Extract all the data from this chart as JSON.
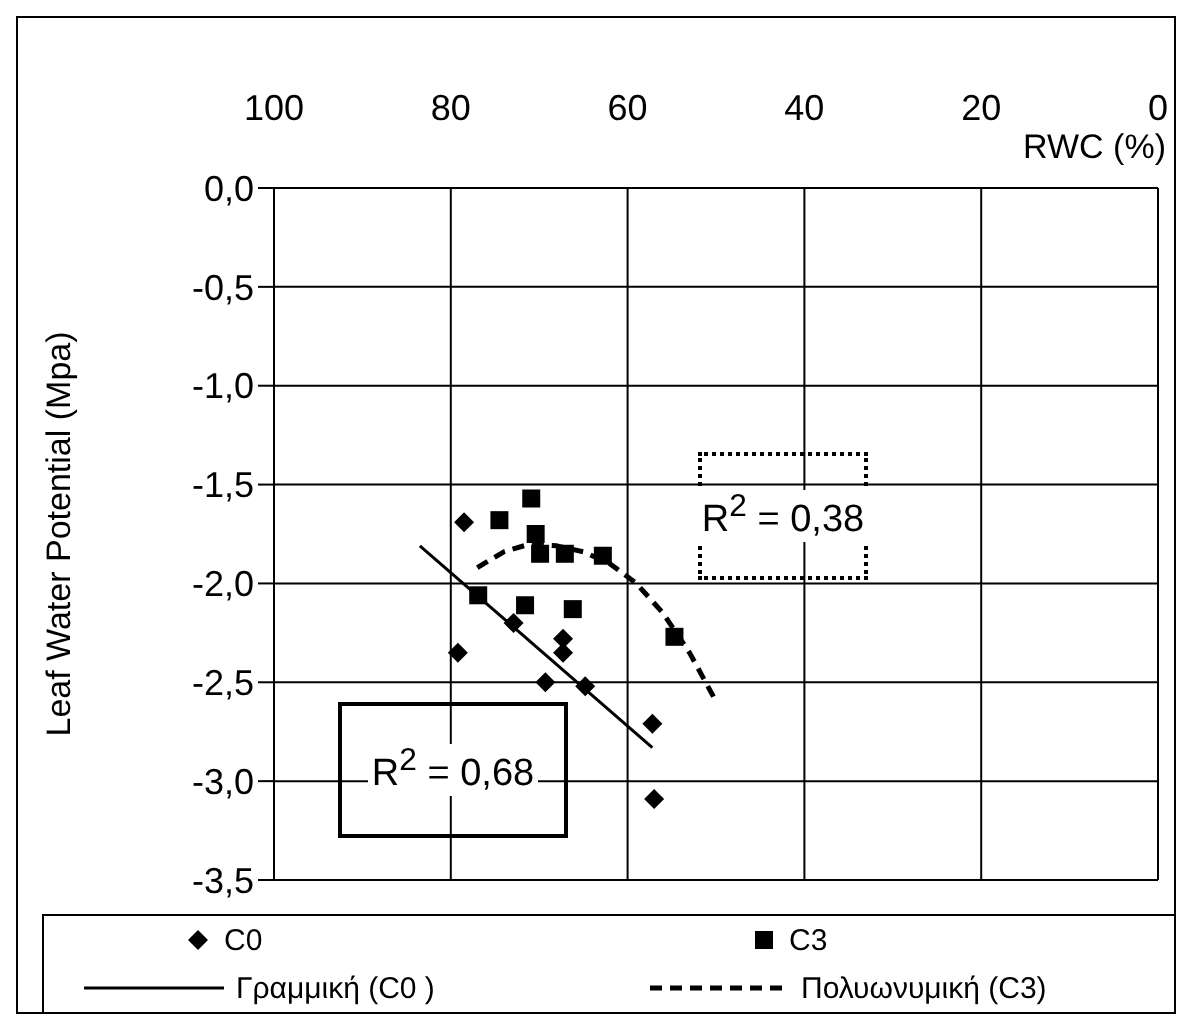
{
  "chart_data": {
    "type": "scatter",
    "xlabel": "RWC (%)",
    "ylabel": "Leaf Water Potential (Mpa)",
    "xlim": [
      100,
      0
    ],
    "xticks": [
      100,
      80,
      60,
      40,
      20,
      0
    ],
    "ylim": [
      -3.5,
      0
    ],
    "yticks": [
      {
        "value": 0,
        "label": "0,0"
      },
      {
        "value": -0.5,
        "label": "-0,5"
      },
      {
        "value": -1,
        "label": "-1,0"
      },
      {
        "value": -1.5,
        "label": "-1,5"
      },
      {
        "value": -2,
        "label": "-2,0"
      },
      {
        "value": -2.5,
        "label": "-2,5"
      },
      {
        "value": -3,
        "label": "-3,0"
      },
      {
        "value": -3.5,
        "label": "-3,5"
      }
    ],
    "grid": true,
    "legend": "bottom",
    "annotations": [
      "R$^{2}$ = 0,68",
      "R$^{2}$ = 0,38"
    ],
    "series": [
      {
        "name": "C0",
        "marker": "diamond",
        "color": "#000000",
        "x": [
          78.5,
          79.2,
          72.9,
          69.3,
          67.3,
          67.3,
          64.8,
          57.2,
          57.0
        ],
        "values": [
          -1.69,
          -2.35,
          -2.2,
          -2.5,
          -2.28,
          -2.35,
          -2.52,
          -2.71,
          -3.09
        ]
      },
      {
        "name": "C3",
        "marker": "square",
        "color": "#000000",
        "x": [
          76.9,
          74.5,
          71.6,
          70.9,
          70.4,
          69.9,
          67.1,
          66.2,
          62.8,
          54.7
        ],
        "values": [
          -2.06,
          -1.68,
          -2.11,
          -1.57,
          -1.75,
          -1.85,
          -1.85,
          -2.13,
          -1.86,
          -2.27
        ]
      },
      {
        "name": "Γραμμική (C0  )",
        "type": "line",
        "line_style": "solid",
        "marker": "none",
        "color": "#000000",
        "x": [
          83.5,
          57.2
        ],
        "values": [
          -1.81,
          -2.83
        ]
      },
      {
        "name": "Πολυωνυμική (C3)",
        "type": "line",
        "line_style": "dashed",
        "marker": "none",
        "color": "#000000",
        "x": [
          77,
          74,
          71,
          68,
          65,
          62,
          59,
          56,
          53,
          50.2
        ],
        "values": [
          -1.92,
          -1.84,
          -1.8,
          -1.81,
          -1.84,
          -1.9,
          -2.0,
          -2.15,
          -2.35,
          -2.58
        ]
      }
    ]
  }
}
